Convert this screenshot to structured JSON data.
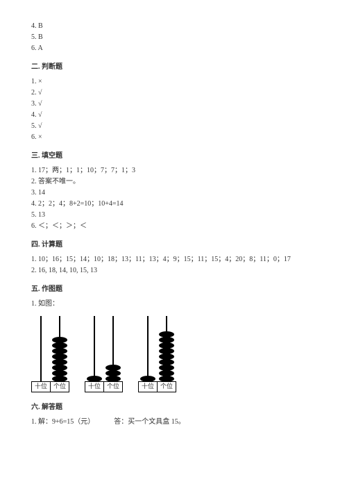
{
  "mc": {
    "a4": "4. B",
    "a5": "5. B",
    "a6": "6. A"
  },
  "s2": {
    "title": "二. 判断题",
    "a1": "1. ×",
    "a2": "2. √",
    "a3": "3. √",
    "a4": "4. √",
    "a5": "5. √",
    "a6": "6. ×"
  },
  "s3": {
    "title": "三. 填空题",
    "a1": "1. 17；两；1；1；10；7；7；1；3",
    "a2": "2. 答案不唯一。",
    "a3": "3. 14",
    "a4": "4. 2；2；4；8+2=10；10+4=14",
    "a5": "5. 13",
    "a6": "6. ＜；＜；＞；＜"
  },
  "s4": {
    "title": "四. 计算题",
    "a1": "1. 10；16；15；14；10；18；13；11；13；4；9；15；11；15；4；20；8；11；0；17",
    "a2": "2. 16, 18, 14, 10, 15, 13"
  },
  "s5": {
    "title": "五. 作图题",
    "a1": "1. 如图：",
    "labels": {
      "tens": "十位",
      "ones": "个位"
    },
    "abaci": [
      {
        "tens": 0,
        "ones": 8
      },
      {
        "tens": 1,
        "ones": 3
      },
      {
        "tens": 1,
        "ones": 9
      }
    ],
    "bead_color": "#000000",
    "stick_color": "#000000",
    "border_color": "#000000"
  },
  "s6": {
    "title": "六. 解答题",
    "a1a": "1. 解：9+6=15（元）",
    "a1b": "答：买一个文具盒 15。"
  }
}
